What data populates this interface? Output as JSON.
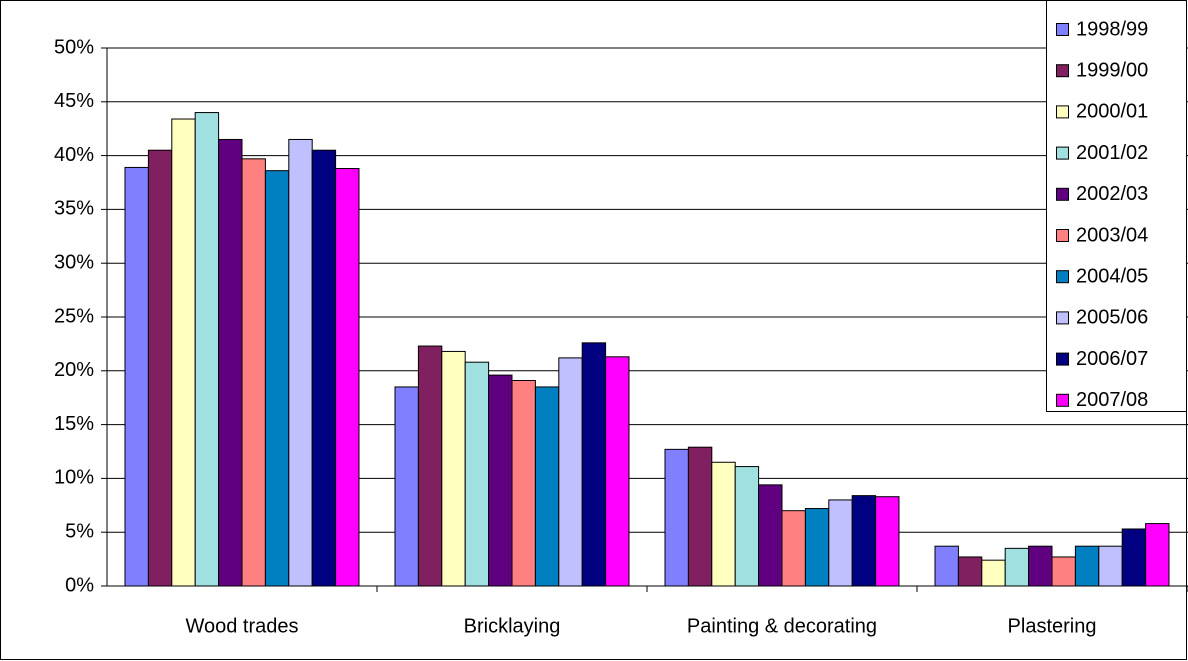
{
  "chart_data": {
    "type": "bar",
    "categories": [
      "Wood trades",
      "Bricklaying",
      "Painting & decorating",
      "Plastering"
    ],
    "series": [
      {
        "name": "1998/99",
        "color": "#8080ff",
        "values": [
          38.9,
          18.5,
          12.7,
          3.7
        ]
      },
      {
        "name": "1999/00",
        "color": "#802060",
        "values": [
          40.5,
          22.3,
          12.9,
          2.7
        ]
      },
      {
        "name": "2000/01",
        "color": "#ffffc0",
        "values": [
          43.4,
          21.8,
          11.5,
          2.4
        ]
      },
      {
        "name": "2001/02",
        "color": "#a0e0e0",
        "values": [
          44.0,
          20.8,
          11.1,
          3.5
        ]
      },
      {
        "name": "2002/03",
        "color": "#600080",
        "values": [
          41.5,
          19.6,
          9.4,
          3.7
        ]
      },
      {
        "name": "2003/04",
        "color": "#ff8080",
        "values": [
          39.7,
          19.1,
          7.0,
          2.7
        ]
      },
      {
        "name": "2004/05",
        "color": "#0080c0",
        "values": [
          38.6,
          18.5,
          7.2,
          3.7
        ]
      },
      {
        "name": "2005/06",
        "color": "#c0c0ff",
        "values": [
          41.5,
          21.2,
          8.0,
          3.7
        ]
      },
      {
        "name": "2006/07",
        "color": "#000080",
        "values": [
          40.5,
          22.6,
          8.4,
          5.3
        ]
      },
      {
        "name": "2007/08",
        "color": "#ff00ff",
        "values": [
          38.8,
          21.3,
          8.3,
          5.8
        ]
      }
    ],
    "ylim": [
      0,
      50
    ],
    "yticks": [
      {
        "value": 0,
        "label": "0%"
      },
      {
        "value": 5,
        "label": "5%"
      },
      {
        "value": 10,
        "label": "10%"
      },
      {
        "value": 15,
        "label": "15%"
      },
      {
        "value": 20,
        "label": "20%"
      },
      {
        "value": 25,
        "label": "25%"
      },
      {
        "value": 30,
        "label": "30%"
      },
      {
        "value": 35,
        "label": "35%"
      },
      {
        "value": 40,
        "label": "40%"
      },
      {
        "value": 45,
        "label": "45%"
      },
      {
        "value": 50,
        "label": "50%"
      }
    ],
    "grid": true,
    "legend": "right"
  }
}
